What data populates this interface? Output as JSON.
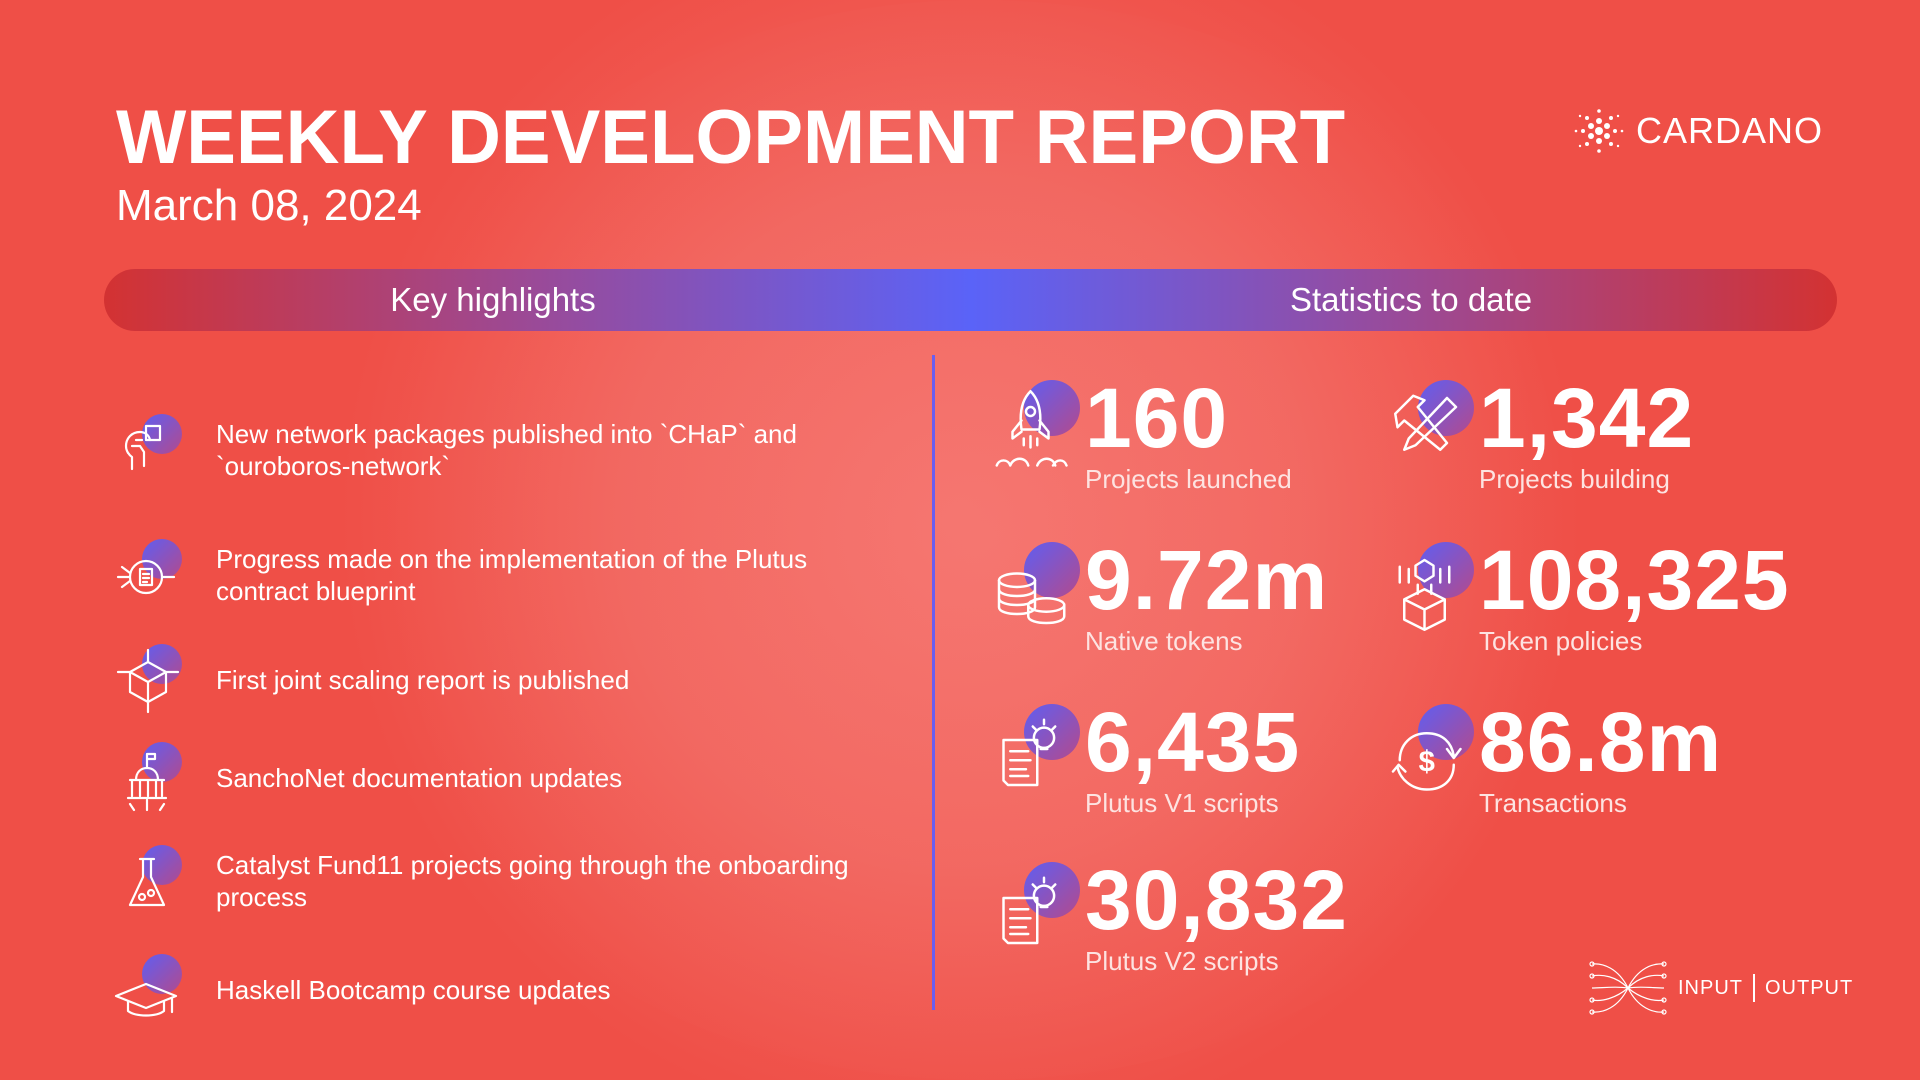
{
  "header": {
    "title": "WEEKLY DEVELOPMENT REPORT",
    "date": "March 08, 2024",
    "brand": "CARDANO"
  },
  "bar": {
    "left": "Key highlights",
    "right": "Statistics to date"
  },
  "highlights": [
    {
      "icon": "brain-chip-icon",
      "text": "New network packages published into `CHaP` and `ouroboros-network`"
    },
    {
      "icon": "document-network-icon",
      "text": "Progress made on the implementation of the Plutus contract blueprint"
    },
    {
      "icon": "cube-network-icon",
      "text": "First joint scaling report is published"
    },
    {
      "icon": "government-building-icon",
      "text": "SanchoNet documentation updates"
    },
    {
      "icon": "flask-icon",
      "text": "Catalyst Fund11 projects going through the onboarding process"
    },
    {
      "icon": "graduation-cap-icon",
      "text": "Haskell Bootcamp course updates"
    }
  ],
  "stats": [
    {
      "icon": "rocket-icon",
      "value": "160",
      "label": "Projects launched"
    },
    {
      "icon": "tools-icon",
      "value": "1,342",
      "label": "Projects building"
    },
    {
      "icon": "coins-icon",
      "value": "9.72m",
      "label": "Native tokens"
    },
    {
      "icon": "token-box-icon",
      "value": "108,325",
      "label": "Token policies"
    },
    {
      "icon": "script-icon",
      "value": "6,435",
      "label": "Plutus V1 scripts"
    },
    {
      "icon": "transaction-icon",
      "value": "86.8m",
      "label": "Transactions"
    },
    {
      "icon": "script-icon",
      "value": "30,832",
      "label": "Plutus V2 scripts"
    }
  ],
  "footer": {
    "brand_left": "INPUT",
    "brand_right": "OUTPUT"
  },
  "colors": {
    "background": "#ef4f47",
    "accent_blue": "#5a63f8",
    "divider": "#6a5ef0"
  }
}
